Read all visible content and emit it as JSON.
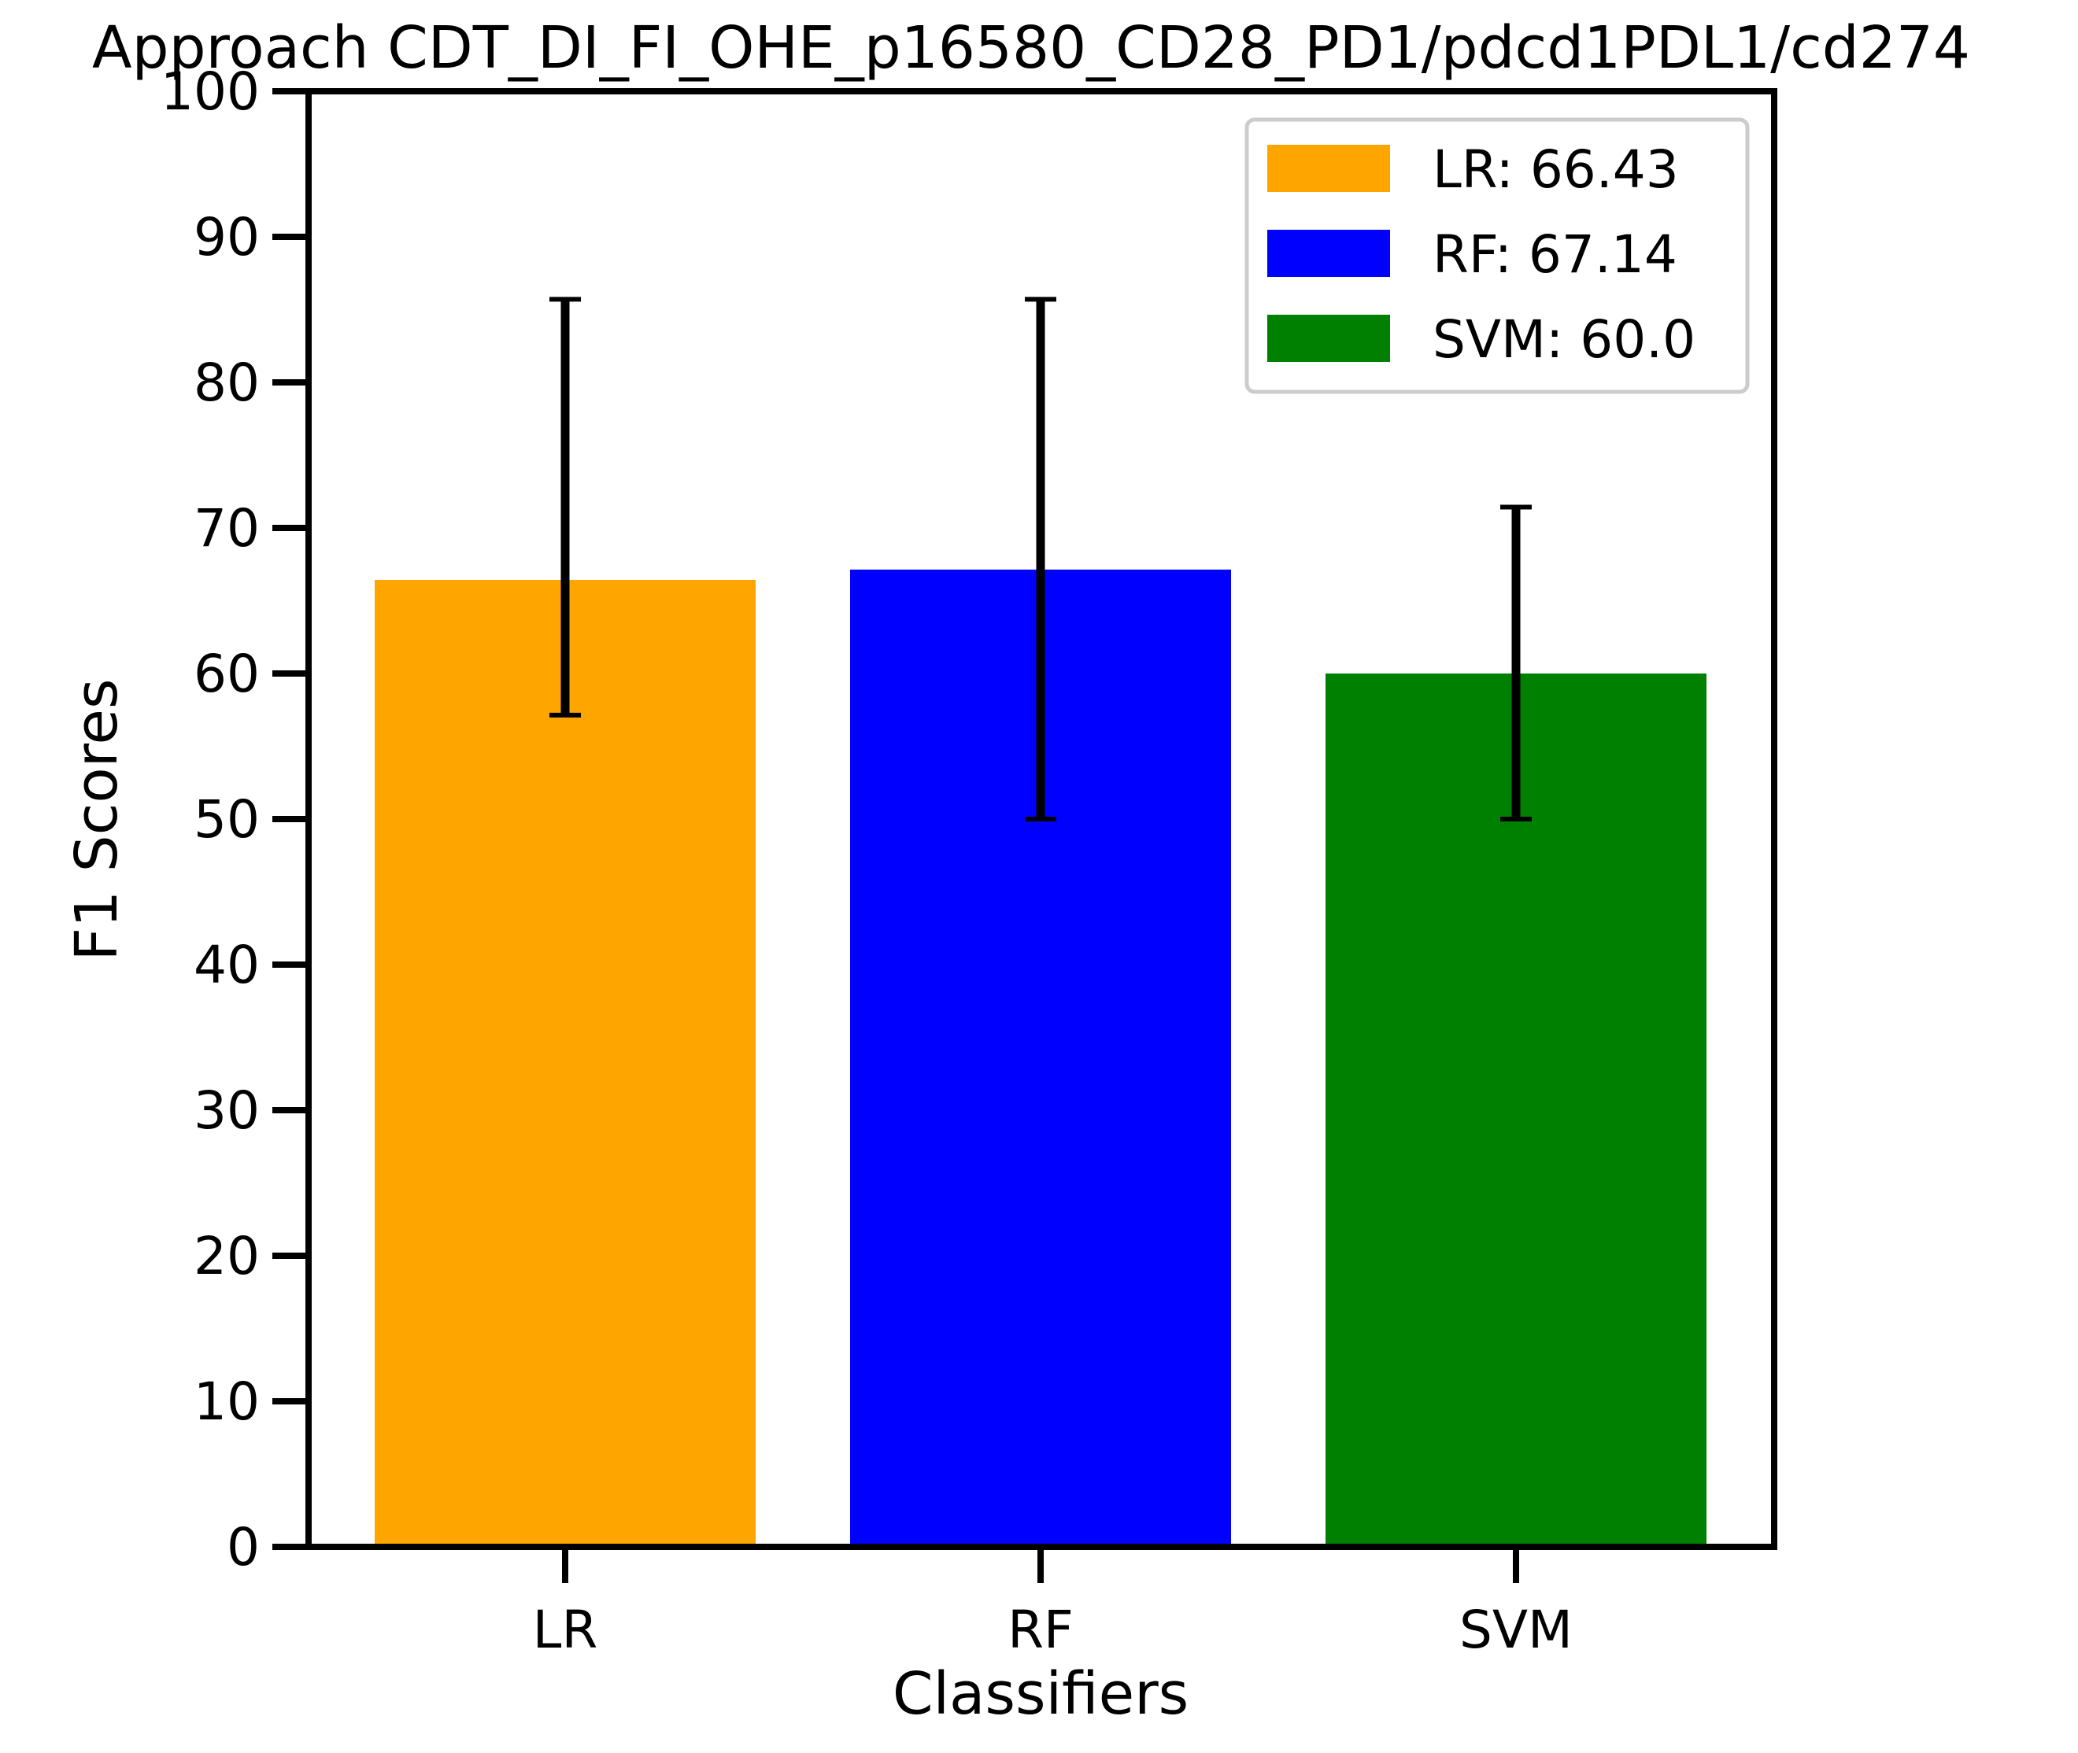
{
  "chart_data": {
    "type": "bar",
    "title": "Approach CDT_DI_FI_OHE_p16580_CD28_PD1/pdcd1PDL1/cd274",
    "xlabel": "Classifiers",
    "ylabel": "F1 Scores",
    "categories": [
      "LR",
      "RF",
      "SVM"
    ],
    "values": [
      66.43,
      67.14,
      60.0
    ],
    "error_low": [
      57.14,
      50.0,
      50.0
    ],
    "error_high": [
      85.71,
      85.71,
      71.43
    ],
    "colors": [
      "#FFA500",
      "#0000FF",
      "#008000"
    ],
    "ylim": [
      0,
      100
    ],
    "yticks": [
      0,
      10,
      20,
      30,
      40,
      50,
      60,
      70,
      80,
      90,
      100
    ],
    "grid": false,
    "legend": {
      "placement": "top-right",
      "entries": [
        "LR: 66.43",
        "RF: 67.14",
        "SVM: 60.0"
      ]
    }
  }
}
